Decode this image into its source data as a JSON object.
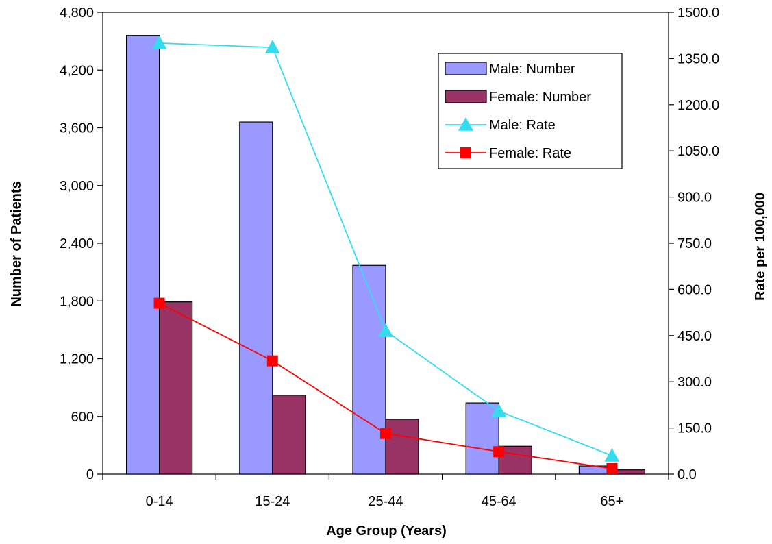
{
  "chart_data": {
    "type": "bar",
    "categories": [
      "0-14",
      "15-24",
      "25-44",
      "45-64",
      "65+"
    ],
    "xlabel": "Age Group (Years)",
    "ylabel": "Number of Patients",
    "y2label": "Rate per 100,000",
    "ylim": [
      0,
      4800
    ],
    "y2lim": [
      0,
      1500
    ],
    "yticks": [
      "0",
      "600",
      "1,200",
      "1,800",
      "2,400",
      "3,000",
      "3,600",
      "4,200",
      "4,800"
    ],
    "y2ticks": [
      "0.0",
      "150.0",
      "300.0",
      "450.0",
      "600.0",
      "750.0",
      "900.0",
      "1050.0",
      "1200.0",
      "1350.0",
      "1500.0"
    ],
    "grid": false,
    "legend_position": "top-right",
    "series": [
      {
        "name": "Male: Number",
        "kind": "bar",
        "axis": "left",
        "color": "#9999ff",
        "values": [
          4560,
          3660,
          2170,
          740,
          85
        ]
      },
      {
        "name": "Female: Number",
        "kind": "bar",
        "axis": "left",
        "color": "#993366",
        "values": [
          1790,
          820,
          570,
          290,
          45
        ]
      },
      {
        "name": "Male: Rate",
        "kind": "line",
        "axis": "right",
        "color": "#33ddee",
        "marker": "triangle",
        "values": [
          1400,
          1386,
          465,
          205,
          60
        ]
      },
      {
        "name": "Female: Rate",
        "kind": "line",
        "axis": "right",
        "color": "#ff0000",
        "marker": "square",
        "values": [
          555,
          368,
          132,
          73,
          18
        ]
      }
    ]
  }
}
